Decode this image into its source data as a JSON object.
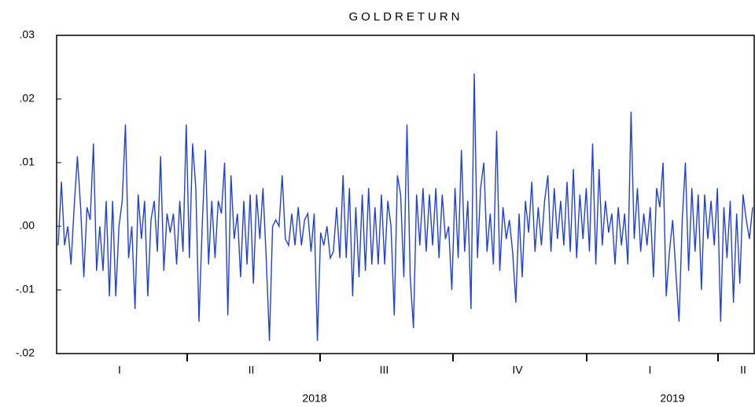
{
  "chart_data": {
    "type": "line",
    "title": "GOLDRETURN",
    "series": [
      {
        "name": "GOLDRETURN",
        "color": "#1f3fe0",
        "values": [
          -0.003,
          0.007,
          -0.003,
          0.0,
          -0.006,
          0.003,
          0.011,
          0.003,
          -0.008,
          0.003,
          0.001,
          0.013,
          -0.007,
          0.0,
          -0.007,
          0.004,
          -0.011,
          0.004,
          -0.011,
          0.0,
          0.004,
          0.016,
          -0.005,
          0.0,
          -0.013,
          0.005,
          -0.002,
          0.004,
          -0.011,
          0.001,
          0.004,
          -0.004,
          0.011,
          -0.007,
          0.002,
          -0.001,
          0.002,
          -0.006,
          0.004,
          -0.004,
          0.016,
          -0.005,
          0.013,
          0.006,
          -0.015,
          0.0,
          0.012,
          -0.006,
          0.004,
          -0.005,
          0.004,
          0.002,
          0.01,
          -0.014,
          0.008,
          -0.002,
          0.002,
          -0.008,
          0.004,
          -0.006,
          0.005,
          -0.009,
          0.005,
          -0.002,
          0.006,
          -0.005,
          -0.018,
          0.0,
          0.001,
          0.0,
          0.008,
          -0.002,
          -0.003,
          0.002,
          -0.003,
          0.003,
          -0.003,
          0.001,
          0.002,
          -0.004,
          0.002,
          -0.018,
          -0.001,
          -0.003,
          0.0,
          -0.005,
          -0.004,
          0.003,
          -0.005,
          0.008,
          -0.005,
          0.006,
          -0.011,
          0.003,
          -0.008,
          0.005,
          -0.007,
          0.006,
          -0.006,
          0.003,
          -0.006,
          0.005,
          -0.006,
          0.004,
          0.0,
          -0.014,
          0.008,
          0.005,
          -0.008,
          0.016,
          -0.008,
          -0.016,
          0.005,
          -0.003,
          0.006,
          -0.004,
          0.005,
          -0.003,
          0.006,
          -0.005,
          0.005,
          -0.002,
          0.0,
          -0.01,
          0.006,
          -0.005,
          0.012,
          -0.004,
          0.004,
          -0.013,
          0.024,
          -0.005,
          0.006,
          0.01,
          -0.004,
          0.002,
          -0.006,
          0.015,
          -0.007,
          0.003,
          -0.002,
          0.001,
          -0.004,
          -0.012,
          0.002,
          -0.008,
          0.004,
          -0.001,
          0.007,
          -0.004,
          0.003,
          -0.003,
          0.004,
          0.008,
          -0.004,
          0.006,
          -0.002,
          0.004,
          -0.003,
          0.007,
          -0.004,
          0.009,
          -0.005,
          0.005,
          -0.002,
          0.006,
          -0.004,
          0.013,
          -0.006,
          0.009,
          -0.003,
          0.004,
          -0.001,
          0.002,
          -0.006,
          0.003,
          -0.003,
          0.002,
          -0.006,
          0.018,
          -0.002,
          0.006,
          -0.004,
          0.002,
          -0.003,
          0.003,
          -0.008,
          0.006,
          0.003,
          0.01,
          -0.011,
          -0.004,
          0.001,
          -0.007,
          -0.015,
          0.001,
          0.01,
          -0.007,
          0.006,
          -0.004,
          0.005,
          -0.01,
          0.005,
          -0.002,
          0.004,
          -0.003,
          0.006,
          -0.015,
          0.003,
          -0.005,
          0.004,
          -0.012,
          0.002,
          -0.009,
          0.005,
          0.001,
          -0.002,
          0.003
        ]
      }
    ],
    "ylim": [
      -0.02,
      0.03
    ],
    "yticks": [
      {
        "value": -0.02,
        "label": "-.02"
      },
      {
        "value": -0.01,
        "label": "-.01"
      },
      {
        "value": 0,
        "label": ".00"
      },
      {
        "value": 0.01,
        "label": ".01"
      },
      {
        "value": 0.02,
        "label": ".02"
      },
      {
        "value": 0.03,
        "label": ".03"
      }
    ],
    "quarters": [
      "I",
      "II",
      "III",
      "IV",
      "I",
      "II"
    ],
    "years": [
      "2018",
      "2019"
    ]
  }
}
